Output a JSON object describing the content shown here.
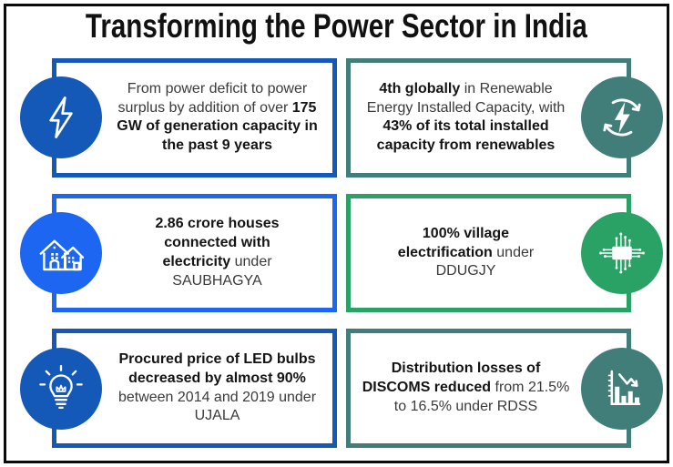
{
  "title": "Transforming the Power Sector in India",
  "colors": {
    "blue": "#1559b8",
    "bright_blue": "#1c66f2",
    "teal": "#417e79",
    "green": "#2aa266"
  },
  "cards": [
    {
      "name": "generation-capacity",
      "icon": "lightning-bolt-icon",
      "theme": "blue",
      "side": "left",
      "segments": [
        {
          "text": "From power deficit to power surplus by addition of over ",
          "bold": false
        },
        {
          "text": "175 GW of generation capacity in the past 9 years",
          "bold": true
        }
      ]
    },
    {
      "name": "renewable-capacity",
      "icon": "renewable-energy-icon",
      "theme": "teal",
      "side": "right",
      "segments": [
        {
          "text": "4th globally",
          "bold": true
        },
        {
          "text": " in Renewable Energy Installed Capacity, with ",
          "bold": false
        },
        {
          "text": "43% of its total installed capacity from renewables",
          "bold": true
        }
      ]
    },
    {
      "name": "saubhagya-electrification",
      "icon": "houses-electrified-icon",
      "theme": "bright_blue",
      "side": "left",
      "segments": [
        {
          "text": "2.86 crore houses connected with electricity",
          "bold": true
        },
        {
          "text": " under SAUBHAGYA",
          "bold": false
        }
      ]
    },
    {
      "name": "ddugjy-village-electrification",
      "icon": "circuit-chip-icon",
      "theme": "green",
      "side": "right",
      "segments": [
        {
          "text": "100% village electrification",
          "bold": true
        },
        {
          "text": " under DDUGJY",
          "bold": false
        }
      ]
    },
    {
      "name": "ujala-led-price",
      "icon": "light-bulb-icon",
      "theme": "blue",
      "side": "left",
      "segments": [
        {
          "text": "Procured price of LED bulbs decreased by almost 90%",
          "bold": true
        },
        {
          "text": " between 2014 and 2019 under UJALA",
          "bold": false
        }
      ]
    },
    {
      "name": "rdss-discom-losses",
      "icon": "declining-bar-chart-icon",
      "theme": "teal",
      "side": "right",
      "segments": [
        {
          "text": "Distribution losses of DISCOMS reduced",
          "bold": true
        },
        {
          "text": " from 21.5% to 16.5% under RDSS",
          "bold": false
        }
      ]
    }
  ]
}
